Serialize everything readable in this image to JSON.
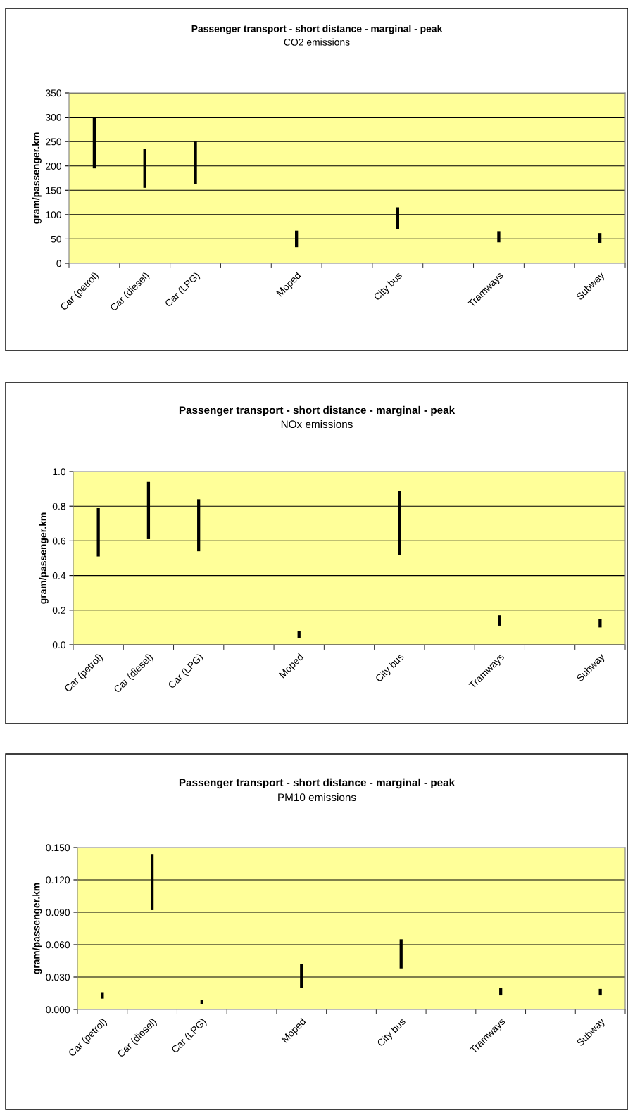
{
  "chart_data": [
    {
      "type": "bar",
      "title": "Passenger transport - short distance - marginal - peak",
      "subtitle": "CO2 emissions",
      "ylabel": "gram/passenger.km",
      "categories": [
        "Car (petrol)",
        "Car (diesel)",
        "Car (LPG)",
        null,
        "Moped",
        null,
        "City bus",
        null,
        "Tramways",
        null,
        "Subway"
      ],
      "base": [
        195,
        155,
        163,
        null,
        33,
        null,
        70,
        null,
        43,
        null,
        42
      ],
      "values": [
        105,
        80,
        87,
        null,
        34,
        null,
        45,
        null,
        23,
        null,
        20
      ],
      "color": "#000000",
      "ylim": [
        0,
        350
      ],
      "yticks": [
        0,
        50,
        100,
        150,
        200,
        250,
        300,
        350
      ],
      "grid": "y"
    },
    {
      "type": "bar",
      "title": "Passenger transport - short distance - marginal - peak",
      "subtitle": "NOx emissions",
      "ylabel": "gram/passenger.km",
      "categories": [
        "Car (petrol)",
        "Car (diesel)",
        "Car (LPG)",
        null,
        "Moped",
        null,
        "City bus",
        null,
        "Tramways",
        null,
        "Subway"
      ],
      "base": [
        0.51,
        0.61,
        0.54,
        null,
        0.04,
        null,
        0.52,
        null,
        0.11,
        null,
        0.1
      ],
      "values": [
        0.28,
        0.33,
        0.3,
        null,
        0.04,
        null,
        0.37,
        null,
        0.06,
        null,
        0.05
      ],
      "color": "#000000",
      "ylim": [
        0,
        1.0
      ],
      "yticks": [
        {
          "value": 0,
          "label": "0.0"
        },
        {
          "value": 0.2,
          "label": "0.2"
        },
        {
          "value": 0.4,
          "label": "0.4"
        },
        {
          "value": 0.6,
          "label": "0.6"
        },
        {
          "value": 0.8,
          "label": "0.8"
        },
        {
          "value": 1.0,
          "label": "1.0"
        }
      ],
      "grid": "y"
    },
    {
      "type": "bar",
      "title": "Passenger transport - short distance - marginal - peak",
      "subtitle": "PM10 emissions",
      "ylabel": "gram/passenger.km",
      "categories": [
        "Car (petrol)",
        "Car (diesel)",
        "Car (LPG)",
        null,
        "Moped",
        null,
        "City bus",
        null,
        "Tramways",
        null,
        "Subway"
      ],
      "base": [
        0.01,
        0.092,
        0.005,
        null,
        0.02,
        null,
        0.038,
        null,
        0.013,
        null,
        0.013
      ],
      "values": [
        0.006,
        0.052,
        0.004,
        null,
        0.022,
        null,
        0.027,
        null,
        0.007,
        null,
        0.006
      ],
      "color": "#000000",
      "ylim": [
        0,
        0.15
      ],
      "yticks": [
        {
          "value": 0,
          "label": "0.000"
        },
        {
          "value": 0.03,
          "label": "0.030"
        },
        {
          "value": 0.06,
          "label": "0.060"
        },
        {
          "value": 0.09,
          "label": "0.090"
        },
        {
          "value": 0.12,
          "label": "0.120"
        },
        {
          "value": 0.15,
          "label": "0.150"
        }
      ],
      "grid": "y"
    }
  ]
}
